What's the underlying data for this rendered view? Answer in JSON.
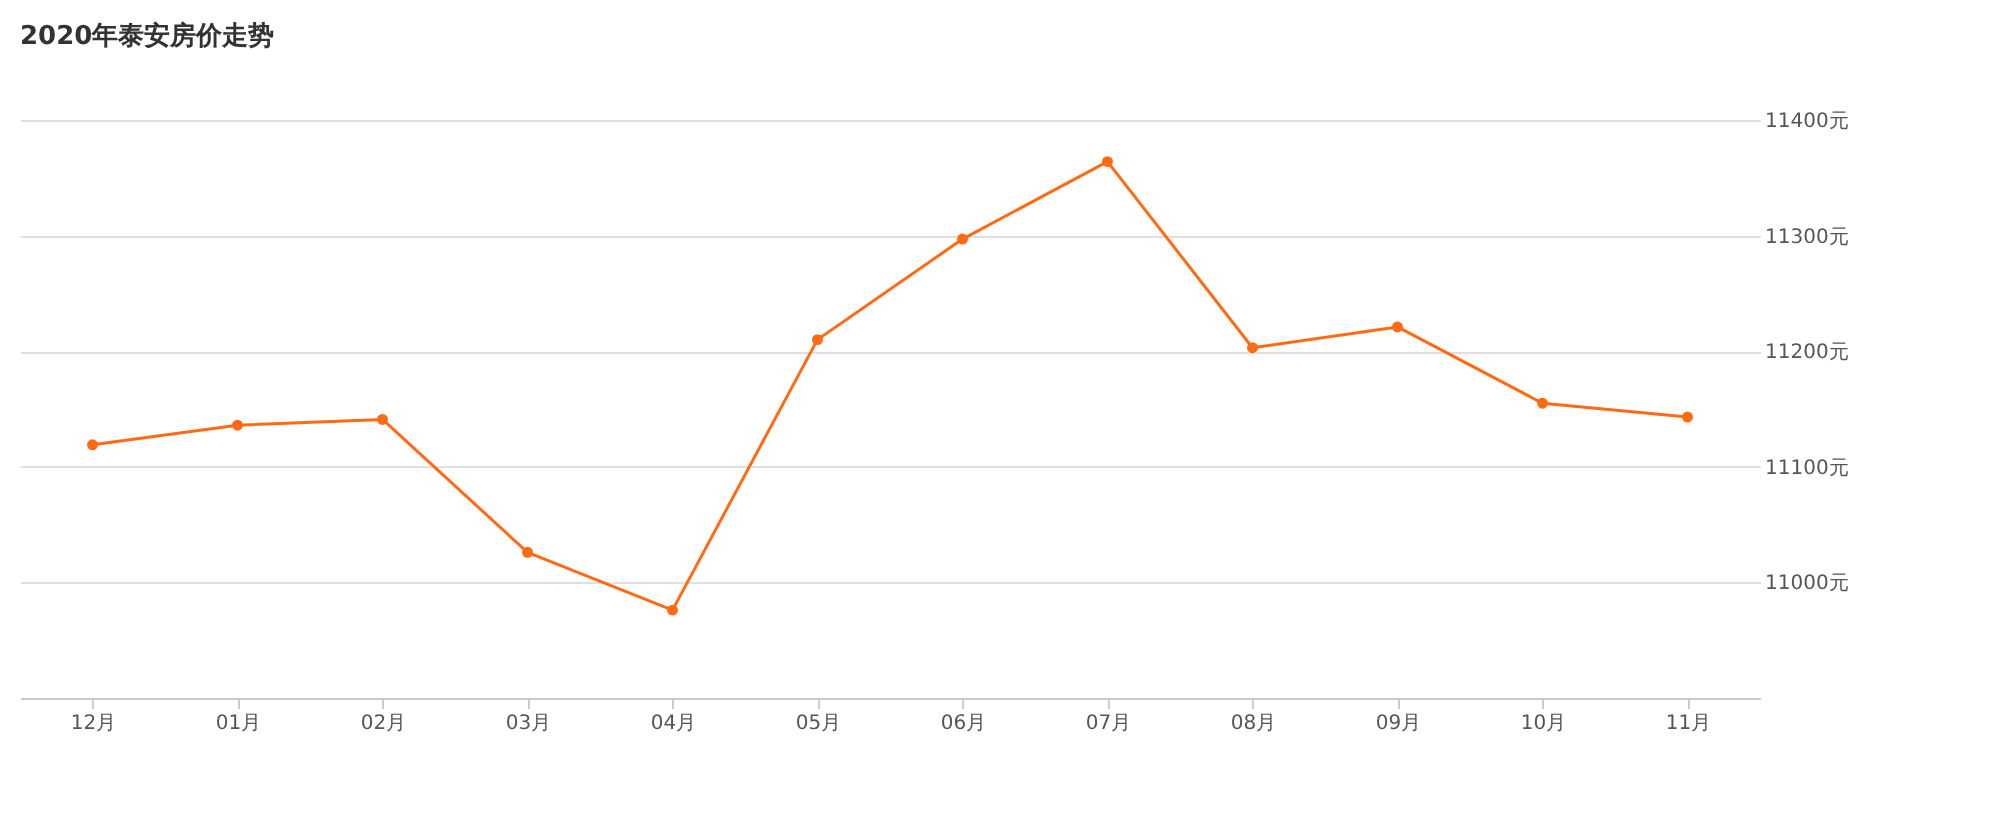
{
  "chart_data": {
    "type": "line",
    "title": "2020年泰安房价走势",
    "categories": [
      "12月",
      "01月",
      "02月",
      "03月",
      "04月",
      "05月",
      "06月",
      "07月",
      "08月",
      "09月",
      "10月",
      "11月"
    ],
    "series": [
      {
        "color": "#ff6a13",
        "values": [
          11119,
          11136,
          11141,
          11026,
          10976,
          11210,
          11297,
          11364,
          11203,
          11221,
          11155,
          11143
        ]
      }
    ],
    "ylim": [
      10900,
      11400
    ],
    "yticks": [
      {
        "value": 11000,
        "label": "11000元"
      },
      {
        "value": 11100,
        "label": "11100元"
      },
      {
        "value": 11200,
        "label": "11200元"
      },
      {
        "value": 11300,
        "label": "11300元"
      },
      {
        "value": 11400,
        "label": "11400元"
      }
    ],
    "grid": "y",
    "marker": "circle",
    "line_style": "solid"
  }
}
